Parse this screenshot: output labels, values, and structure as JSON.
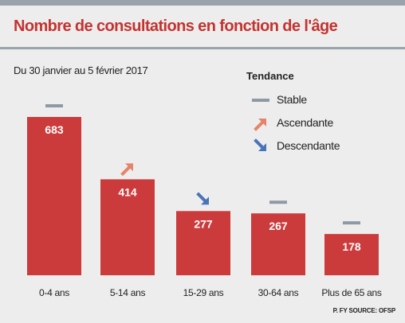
{
  "title": "Nombre de consultations en fonction de l'âge",
  "subtitle": "Du 30 janvier au 5 février 2017",
  "legend": {
    "title": "Tendance",
    "items": [
      {
        "label": "Stable",
        "icon": "dash-icon",
        "color": "#8e9aa3"
      },
      {
        "label": "Ascendante",
        "icon": "arrow-up-right-icon",
        "color": "#e6846a"
      },
      {
        "label": "Descendante",
        "icon": "arrow-down-right-icon",
        "color": "#4a74b8"
      }
    ]
  },
  "source": "P. FY SOURCE: OFSP",
  "colors": {
    "bar": "#cc3b3c",
    "title": "#c4332f",
    "stable": "#8e9aa3",
    "up": "#e6846a",
    "down": "#4a74b8"
  },
  "chart_data": {
    "type": "bar",
    "categories": [
      "0-4 ans",
      "5-14 ans",
      "15-29 ans",
      "30-64 ans",
      "Plus de 65 ans"
    ],
    "values": [
      683,
      414,
      277,
      267,
      178
    ],
    "trends": [
      "stable",
      "up",
      "down",
      "stable",
      "stable"
    ],
    "data_labels": [
      "683",
      "414",
      "277",
      "267",
      "178"
    ],
    "title": "Nombre de consultations en fonction de l'âge",
    "xlabel": "",
    "ylabel": "",
    "ylim": [
      0,
      683
    ],
    "grid": false,
    "legend_position": "top-right"
  }
}
